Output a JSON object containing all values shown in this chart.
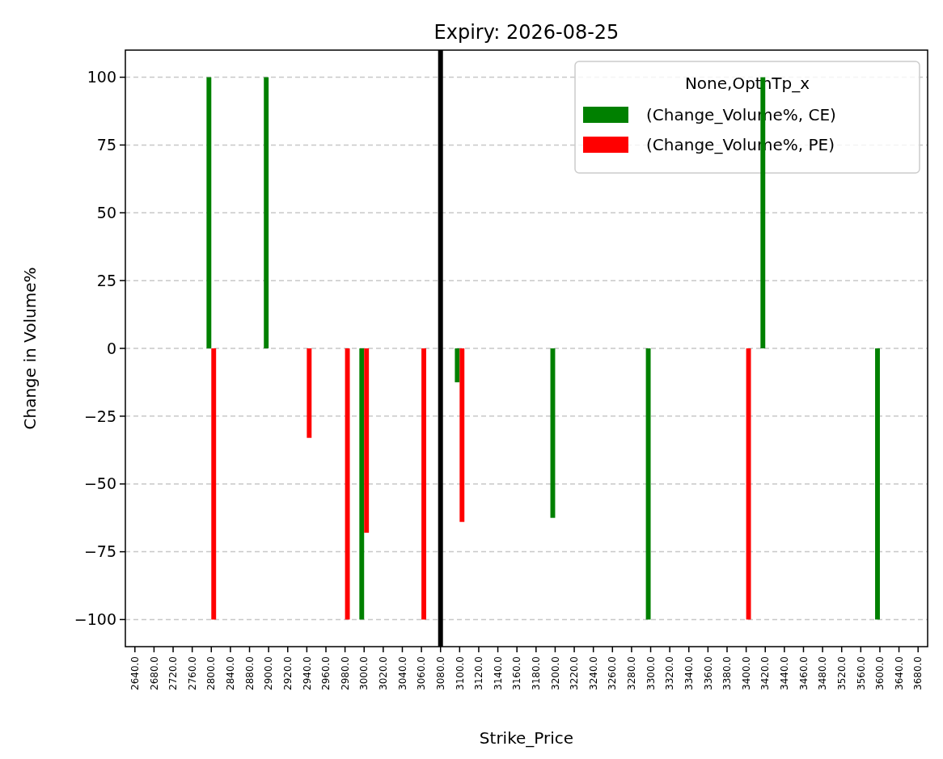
{
  "chart_data": {
    "type": "bar",
    "title": "Expiry: 2026-08-25",
    "xlabel": "Strike_Price",
    "ylabel": "Change in Volume%",
    "legend_title": "None,OptnTp_x",
    "categories": [
      "2640.0",
      "2680.0",
      "2720.0",
      "2760.0",
      "2800.0",
      "2840.0",
      "2880.0",
      "2900.0",
      "2920.0",
      "2940.0",
      "2960.0",
      "2980.0",
      "3000.0",
      "3020.0",
      "3040.0",
      "3060.0",
      "3080.0",
      "3100.0",
      "3120.0",
      "3140.0",
      "3160.0",
      "3180.0",
      "3200.0",
      "3220.0",
      "3240.0",
      "3260.0",
      "3280.0",
      "3300.0",
      "3320.0",
      "3340.0",
      "3360.0",
      "3380.0",
      "3400.0",
      "3420.0",
      "3440.0",
      "3460.0",
      "3480.0",
      "3520.0",
      "3560.0",
      "3600.0",
      "3640.0",
      "3680.0"
    ],
    "series": [
      {
        "name": "(Change_Volume%, CE)",
        "color": "#008000",
        "values": [
          null,
          null,
          null,
          null,
          100,
          null,
          null,
          100,
          null,
          null,
          null,
          null,
          -100,
          null,
          null,
          null,
          null,
          -12.5,
          null,
          null,
          null,
          null,
          -62.5,
          null,
          null,
          null,
          null,
          -100,
          null,
          null,
          null,
          null,
          null,
          100,
          null,
          null,
          null,
          null,
          null,
          -100,
          null,
          null
        ]
      },
      {
        "name": "(Change_Volume%, PE)",
        "color": "#ff0000",
        "values": [
          null,
          null,
          null,
          null,
          -100,
          null,
          null,
          null,
          null,
          -33,
          null,
          -100,
          -68,
          null,
          null,
          -100,
          null,
          -64,
          null,
          null,
          null,
          null,
          null,
          null,
          null,
          null,
          null,
          null,
          null,
          null,
          null,
          null,
          -100,
          null,
          null,
          null,
          null,
          null,
          null,
          null,
          null,
          null
        ]
      }
    ],
    "ylim": [
      -110,
      110
    ],
    "yticks": [
      {
        "value": -100,
        "label": "−100"
      },
      {
        "value": -75,
        "label": "−75"
      },
      {
        "value": -50,
        "label": "−50"
      },
      {
        "value": -25,
        "label": "−25"
      },
      0,
      25,
      50,
      75,
      100
    ],
    "grid": "y",
    "legend": "top right",
    "ref_lines": [
      {
        "axis": "x",
        "value": "3080.0",
        "color": "#000000",
        "line_style": "solid"
      }
    ]
  }
}
